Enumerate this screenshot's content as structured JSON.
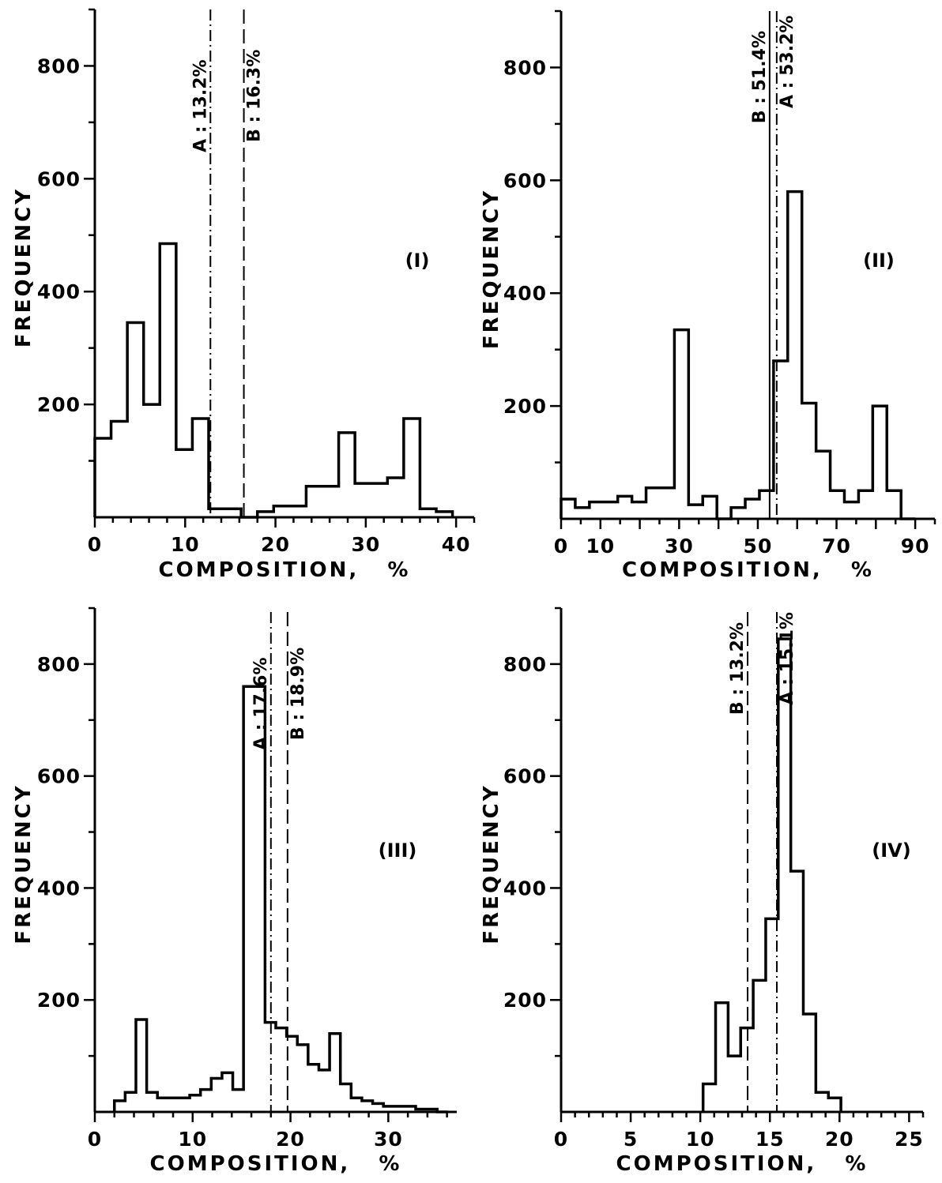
{
  "chart_data": [
    {
      "type": "bar",
      "panel_label": "(I)",
      "xlabel": "COMPOSITION,   %",
      "ylabel": "FREQUENCY",
      "xlim": [
        0,
        42
      ],
      "ylim": [
        0,
        900
      ],
      "x_ticks": [
        0,
        10,
        20,
        30,
        40
      ],
      "x_tick_labels": [
        "0",
        "10",
        "20",
        "30",
        "40"
      ],
      "y_ticks": [
        200,
        400,
        600,
        800
      ],
      "y_tick_labels": [
        "200",
        "400",
        "600",
        "800"
      ],
      "bin_width": 1.8,
      "bin_starts": [
        0,
        1.8,
        3.6,
        5.4,
        7.2,
        9.0,
        10.8,
        12.6,
        14.4,
        16.2,
        18.0,
        19.8,
        21.6,
        23.4,
        25.2,
        27.0,
        28.8,
        30.6,
        32.4,
        34.2,
        36.0,
        37.8
      ],
      "values": [
        140,
        170,
        345,
        200,
        485,
        120,
        175,
        15,
        15,
        0,
        10,
        20,
        20,
        55,
        55,
        150,
        60,
        60,
        70,
        175,
        15,
        10
      ],
      "markers": [
        {
          "x": 12.8,
          "label": "A : 13.2%",
          "style": "dash-dot"
        },
        {
          "x": 16.5,
          "label": "B : 16.3%",
          "style": "long-dash"
        }
      ]
    },
    {
      "type": "bar",
      "panel_label": "(II)",
      "xlabel": "COMPOSITION,   %",
      "ylabel": "FREQUENCY",
      "xlim": [
        0,
        95
      ],
      "ylim": [
        0,
        900
      ],
      "x_ticks": [
        0,
        10,
        30,
        50,
        70,
        90
      ],
      "x_tick_labels": [
        "0",
        "10",
        "30",
        "50",
        "70",
        "90"
      ],
      "y_ticks": [
        200,
        400,
        600,
        800
      ],
      "y_tick_labels": [
        "200",
        "400",
        "600",
        "800"
      ],
      "bin_width": 3.6,
      "bin_starts": [
        0,
        3.6,
        7.2,
        10.8,
        14.4,
        18.0,
        21.6,
        25.2,
        28.8,
        32.4,
        36.0,
        39.6,
        43.2,
        46.8,
        50.4,
        54.0,
        57.6,
        61.2,
        64.8,
        68.4,
        72.0,
        75.6,
        79.2,
        82.8,
        86.4
      ],
      "values": [
        35,
        20,
        30,
        30,
        40,
        30,
        55,
        55,
        335,
        25,
        40,
        0,
        20,
        35,
        50,
        280,
        580,
        205,
        120,
        50,
        30,
        50,
        200,
        50,
        0
      ],
      "markers": [
        {
          "x": 53.0,
          "label": "B : 51.4%",
          "style": "solid"
        },
        {
          "x": 54.8,
          "label": "A : 53.2%",
          "style": "dash-dot"
        }
      ]
    },
    {
      "type": "bar",
      "panel_label": "(III)",
      "xlabel": "COMPOSITION,   %",
      "ylabel": "FREQUENCY",
      "xlim": [
        0,
        37
      ],
      "ylim": [
        0,
        900
      ],
      "x_ticks": [
        0,
        10,
        20,
        30
      ],
      "x_tick_labels": [
        "0",
        "10",
        "20",
        "30"
      ],
      "y_ticks": [
        200,
        400,
        600,
        800
      ],
      "y_tick_labels": [
        "200",
        "400",
        "600",
        "800"
      ],
      "bin_width": 1.1,
      "bin_starts": [
        2.0,
        3.1,
        4.2,
        5.3,
        6.4,
        7.5,
        8.6,
        9.7,
        10.8,
        11.9,
        13.0,
        14.1,
        15.2,
        16.3,
        17.4,
        18.5,
        19.6,
        20.7,
        21.8,
        22.9,
        24.0,
        25.1,
        26.2,
        27.3,
        28.4,
        29.5,
        30.6,
        31.7,
        32.8,
        33.9,
        35.0
      ],
      "values": [
        20,
        35,
        165,
        35,
        25,
        25,
        25,
        30,
        40,
        60,
        70,
        40,
        760,
        760,
        160,
        150,
        135,
        120,
        85,
        75,
        140,
        50,
        25,
        20,
        15,
        10,
        10,
        10,
        5,
        5,
        0
      ],
      "markers": [
        {
          "x": 18.0,
          "label": "A : 17.6%",
          "style": "dash-dot"
        },
        {
          "x": 19.7,
          "label": "B : 18.9%",
          "style": "long-dash"
        }
      ]
    },
    {
      "type": "bar",
      "panel_label": "(IV)",
      "xlabel": "COMPOSITION,   %",
      "ylabel": "FREQUENCY",
      "xlim": [
        0,
        26
      ],
      "ylim": [
        0,
        900
      ],
      "x_ticks": [
        0,
        5,
        10,
        15,
        20,
        25
      ],
      "x_tick_labels": [
        "0",
        "5",
        "10",
        "15",
        "20",
        "25"
      ],
      "y_ticks": [
        200,
        400,
        600,
        800
      ],
      "y_tick_labels": [
        "200",
        "400",
        "600",
        "800"
      ],
      "bin_width": 0.9,
      "bin_starts": [
        10.2,
        11.1,
        12.0,
        12.9,
        13.8,
        14.7,
        15.6,
        16.5,
        17.4,
        18.3,
        19.2
      ],
      "values": [
        50,
        195,
        100,
        150,
        235,
        345,
        845,
        430,
        175,
        35,
        25
      ],
      "markers": [
        {
          "x": 13.4,
          "label": "B : 13.2%",
          "style": "long-dash"
        },
        {
          "x": 15.5,
          "label": "A : 15.1%",
          "style": "dash-dot"
        }
      ]
    }
  ]
}
